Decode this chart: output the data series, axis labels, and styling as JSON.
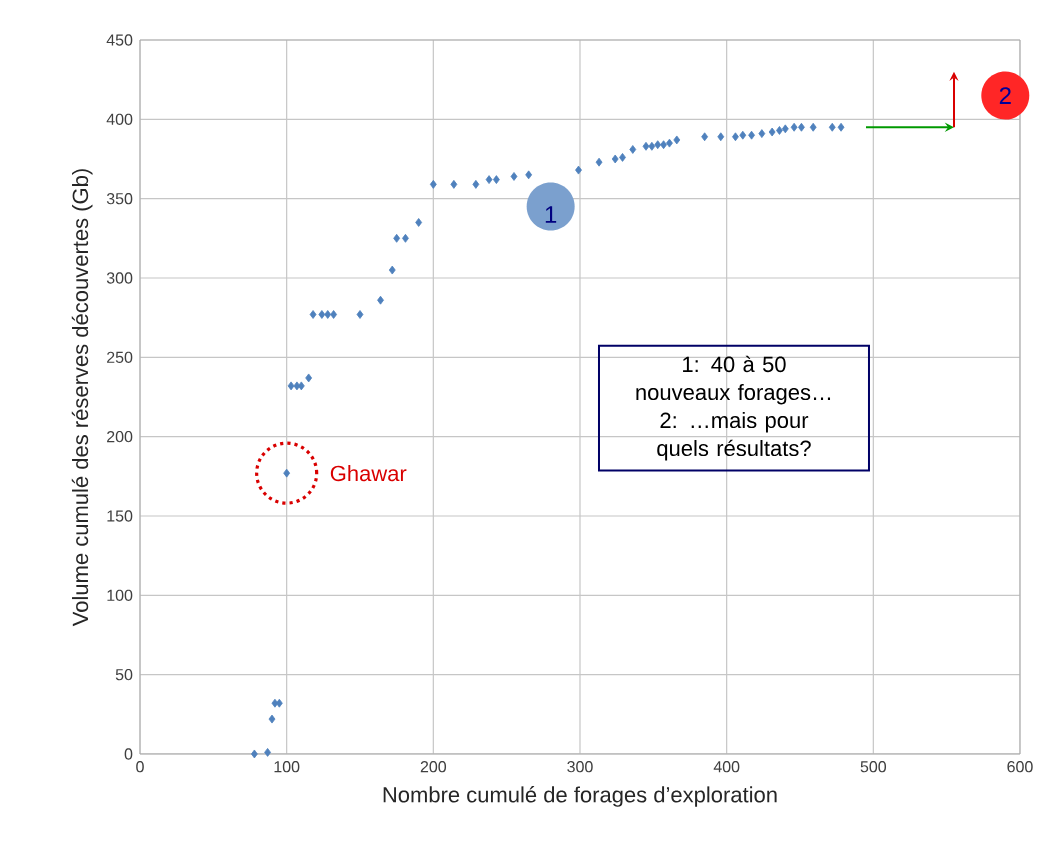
{
  "chart_data": {
    "type": "scatter",
    "xlabel": "Nombre cumulé de forages d’exploration",
    "ylabel": "Volume cumulé des réserves découvertes (Gb)",
    "x": [
      78,
      87,
      90,
      92,
      95,
      100,
      103,
      107,
      110,
      115,
      118,
      124,
      128,
      132,
      150,
      164,
      172,
      175,
      181,
      190,
      200,
      214,
      229,
      238,
      243,
      255,
      265,
      299,
      313,
      324,
      329,
      336,
      345,
      349,
      353,
      357,
      361,
      366,
      385,
      396,
      406,
      411,
      417,
      424,
      431,
      436,
      440,
      446,
      451,
      459,
      472,
      478
    ],
    "values": [
      0,
      1,
      22,
      32,
      32,
      177,
      232,
      232,
      232,
      237,
      277,
      277,
      277,
      277,
      277,
      286,
      305,
      325,
      325,
      335,
      359,
      359,
      359,
      362,
      362,
      364,
      365,
      368,
      373,
      375,
      376,
      381,
      383,
      383,
      384,
      384,
      385,
      387,
      389,
      389,
      389,
      390,
      390,
      391,
      392,
      393,
      394,
      395,
      395,
      395,
      395,
      395
    ],
    "color": "#4f81bd",
    "marker": "diamond",
    "grid": true,
    "xlim": [
      0,
      600
    ],
    "ylim": [
      0,
      450
    ],
    "xticks": [
      0,
      100,
      200,
      300,
      400,
      500,
      600
    ],
    "yticks": [
      0,
      50,
      100,
      150,
      200,
      250,
      300,
      350,
      400,
      450
    ],
    "annotations": [
      {
        "text": "Ghawar",
        "x": 100,
        "y": 177
      },
      {
        "text": "1",
        "x": 280,
        "y": 345
      },
      {
        "text": "2",
        "x": 590,
        "y": 415
      },
      "1: 40 à 50 nouveaux forages…",
      "2: …mais pour quels résultats?"
    ]
  }
}
